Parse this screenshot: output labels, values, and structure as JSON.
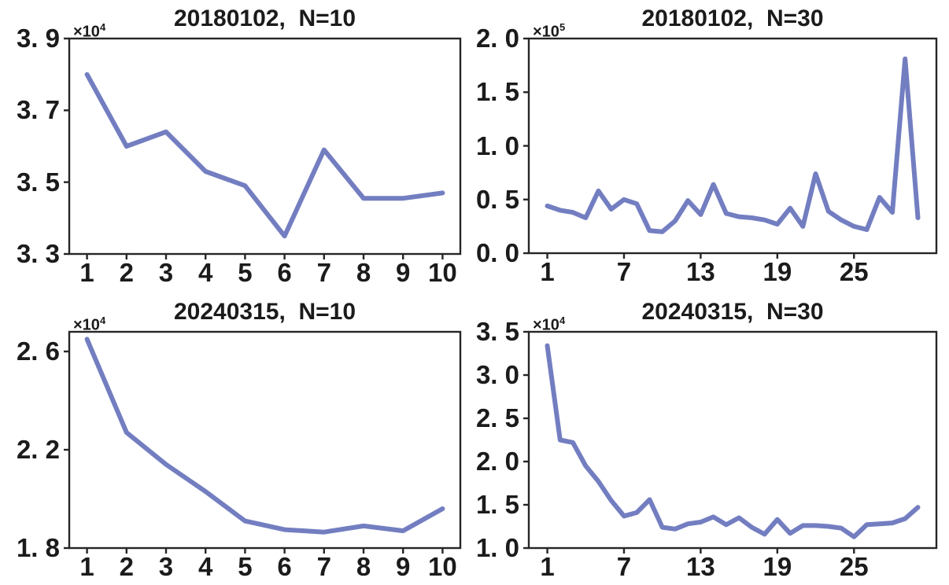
{
  "page": {
    "background": "#ffffff",
    "text_color": "#1b1b1b",
    "axis_color": "#262626",
    "accent_line_color": "#737EC1"
  },
  "chart_data": [
    {
      "type": "line",
      "title": "20180102,  N=10",
      "offset": {
        "base": "×10",
        "exponent": "4"
      },
      "scale_note": "y values are in units of 10^4",
      "line_color": "#737EC1",
      "grid": false,
      "legend": null,
      "x": [
        1,
        2,
        3,
        4,
        5,
        6,
        7,
        8,
        9,
        10
      ],
      "values": [
        3.8,
        3.6,
        3.64,
        3.53,
        3.49,
        3.35,
        3.59,
        3.455,
        3.455,
        3.47
      ],
      "xlim": [
        0.55,
        10.45
      ],
      "ylim": [
        3.3,
        3.9
      ],
      "x_ticks": [
        {
          "label": "1",
          "value": 1
        },
        {
          "label": "2",
          "value": 2
        },
        {
          "label": "3",
          "value": 3
        },
        {
          "label": "4",
          "value": 4
        },
        {
          "label": "5",
          "value": 5
        },
        {
          "label": "6",
          "value": 6
        },
        {
          "label": "7",
          "value": 7
        },
        {
          "label": "8",
          "value": 8
        },
        {
          "label": "9",
          "value": 9
        },
        {
          "label": "10",
          "value": 10
        }
      ],
      "y_ticks": [
        {
          "label": "3. 9",
          "value": 3.9
        },
        {
          "label": "3. 7",
          "value": 3.7
        },
        {
          "label": "3. 5",
          "value": 3.5
        },
        {
          "label": "3. 3",
          "value": 3.3
        }
      ]
    },
    {
      "type": "line",
      "title": "20180102,  N=30",
      "offset": {
        "base": "×10",
        "exponent": "5"
      },
      "scale_note": "y values are in units of 10^5",
      "line_color": "#737EC1",
      "grid": false,
      "legend": null,
      "x": [
        1,
        2,
        3,
        4,
        5,
        6,
        7,
        8,
        9,
        10,
        11,
        12,
        13,
        14,
        15,
        16,
        17,
        18,
        19,
        20,
        21,
        22,
        23,
        24,
        25,
        26,
        27,
        28,
        29,
        30
      ],
      "values": [
        0.44,
        0.4,
        0.38,
        0.33,
        0.58,
        0.41,
        0.5,
        0.46,
        0.21,
        0.2,
        0.3,
        0.49,
        0.36,
        0.64,
        0.37,
        0.34,
        0.33,
        0.31,
        0.27,
        0.42,
        0.25,
        0.74,
        0.39,
        0.31,
        0.25,
        0.22,
        0.52,
        0.38,
        1.81,
        0.33
      ],
      "xlim": [
        -0.45,
        31.45
      ],
      "ylim": [
        0.0,
        2.0
      ],
      "x_ticks": [
        {
          "label": "1",
          "value": 1
        },
        {
          "label": "7",
          "value": 7
        },
        {
          "label": "13",
          "value": 13
        },
        {
          "label": "19",
          "value": 19
        },
        {
          "label": "25",
          "value": 25
        }
      ],
      "y_ticks": [
        {
          "label": "2. 0",
          "value": 2.0
        },
        {
          "label": "1. 5",
          "value": 1.5
        },
        {
          "label": "1. 0",
          "value": 1.0
        },
        {
          "label": "0. 5",
          "value": 0.5
        },
        {
          "label": "0. 0",
          "value": 0.0
        }
      ]
    },
    {
      "type": "line",
      "title": "20240315,  N=10",
      "offset": {
        "base": "×10",
        "exponent": "4"
      },
      "scale_note": "y values are in units of 10^4",
      "line_color": "#737EC1",
      "grid": false,
      "legend": null,
      "x": [
        1,
        2,
        3,
        4,
        5,
        6,
        7,
        8,
        9,
        10
      ],
      "values": [
        2.65,
        2.27,
        2.14,
        2.03,
        1.91,
        1.875,
        1.865,
        1.89,
        1.87,
        1.96
      ],
      "xlim": [
        0.55,
        10.45
      ],
      "ylim": [
        1.8,
        2.68
      ],
      "x_ticks": [
        {
          "label": "1",
          "value": 1
        },
        {
          "label": "2",
          "value": 2
        },
        {
          "label": "3",
          "value": 3
        },
        {
          "label": "4",
          "value": 4
        },
        {
          "label": "5",
          "value": 5
        },
        {
          "label": "6",
          "value": 6
        },
        {
          "label": "7",
          "value": 7
        },
        {
          "label": "8",
          "value": 8
        },
        {
          "label": "9",
          "value": 9
        },
        {
          "label": "10",
          "value": 10
        }
      ],
      "y_ticks": [
        {
          "label": "2. 6",
          "value": 2.6
        },
        {
          "label": "2. 2",
          "value": 2.2
        },
        {
          "label": "1. 8",
          "value": 1.8
        }
      ]
    },
    {
      "type": "line",
      "title": "20240315,  N=30",
      "offset": {
        "base": "×10",
        "exponent": "4"
      },
      "scale_note": "y values are in units of 10^4",
      "line_color": "#737EC1",
      "grid": false,
      "legend": null,
      "x": [
        1,
        2,
        3,
        4,
        5,
        6,
        7,
        8,
        9,
        10,
        11,
        12,
        13,
        14,
        15,
        16,
        17,
        18,
        19,
        20,
        21,
        22,
        23,
        24,
        25,
        26,
        27,
        28,
        29,
        30
      ],
      "values": [
        3.34,
        2.25,
        2.22,
        1.95,
        1.77,
        1.55,
        1.37,
        1.41,
        1.56,
        1.24,
        1.22,
        1.28,
        1.3,
        1.36,
        1.27,
        1.35,
        1.24,
        1.16,
        1.33,
        1.17,
        1.26,
        1.26,
        1.25,
        1.23,
        1.13,
        1.27,
        1.28,
        1.29,
        1.34,
        1.47
      ],
      "xlim": [
        -0.45,
        31.45
      ],
      "ylim": [
        1.0,
        3.5
      ],
      "x_ticks": [
        {
          "label": "1",
          "value": 1
        },
        {
          "label": "7",
          "value": 7
        },
        {
          "label": "13",
          "value": 13
        },
        {
          "label": "19",
          "value": 19
        },
        {
          "label": "25",
          "value": 25
        }
      ],
      "y_ticks": [
        {
          "label": "3. 5",
          "value": 3.5
        },
        {
          "label": "3. 0",
          "value": 3.0
        },
        {
          "label": "2. 5",
          "value": 2.5
        },
        {
          "label": "2. 0",
          "value": 2.0
        },
        {
          "label": "1. 5",
          "value": 1.5
        },
        {
          "label": "1. 0",
          "value": 1.0
        }
      ]
    }
  ]
}
